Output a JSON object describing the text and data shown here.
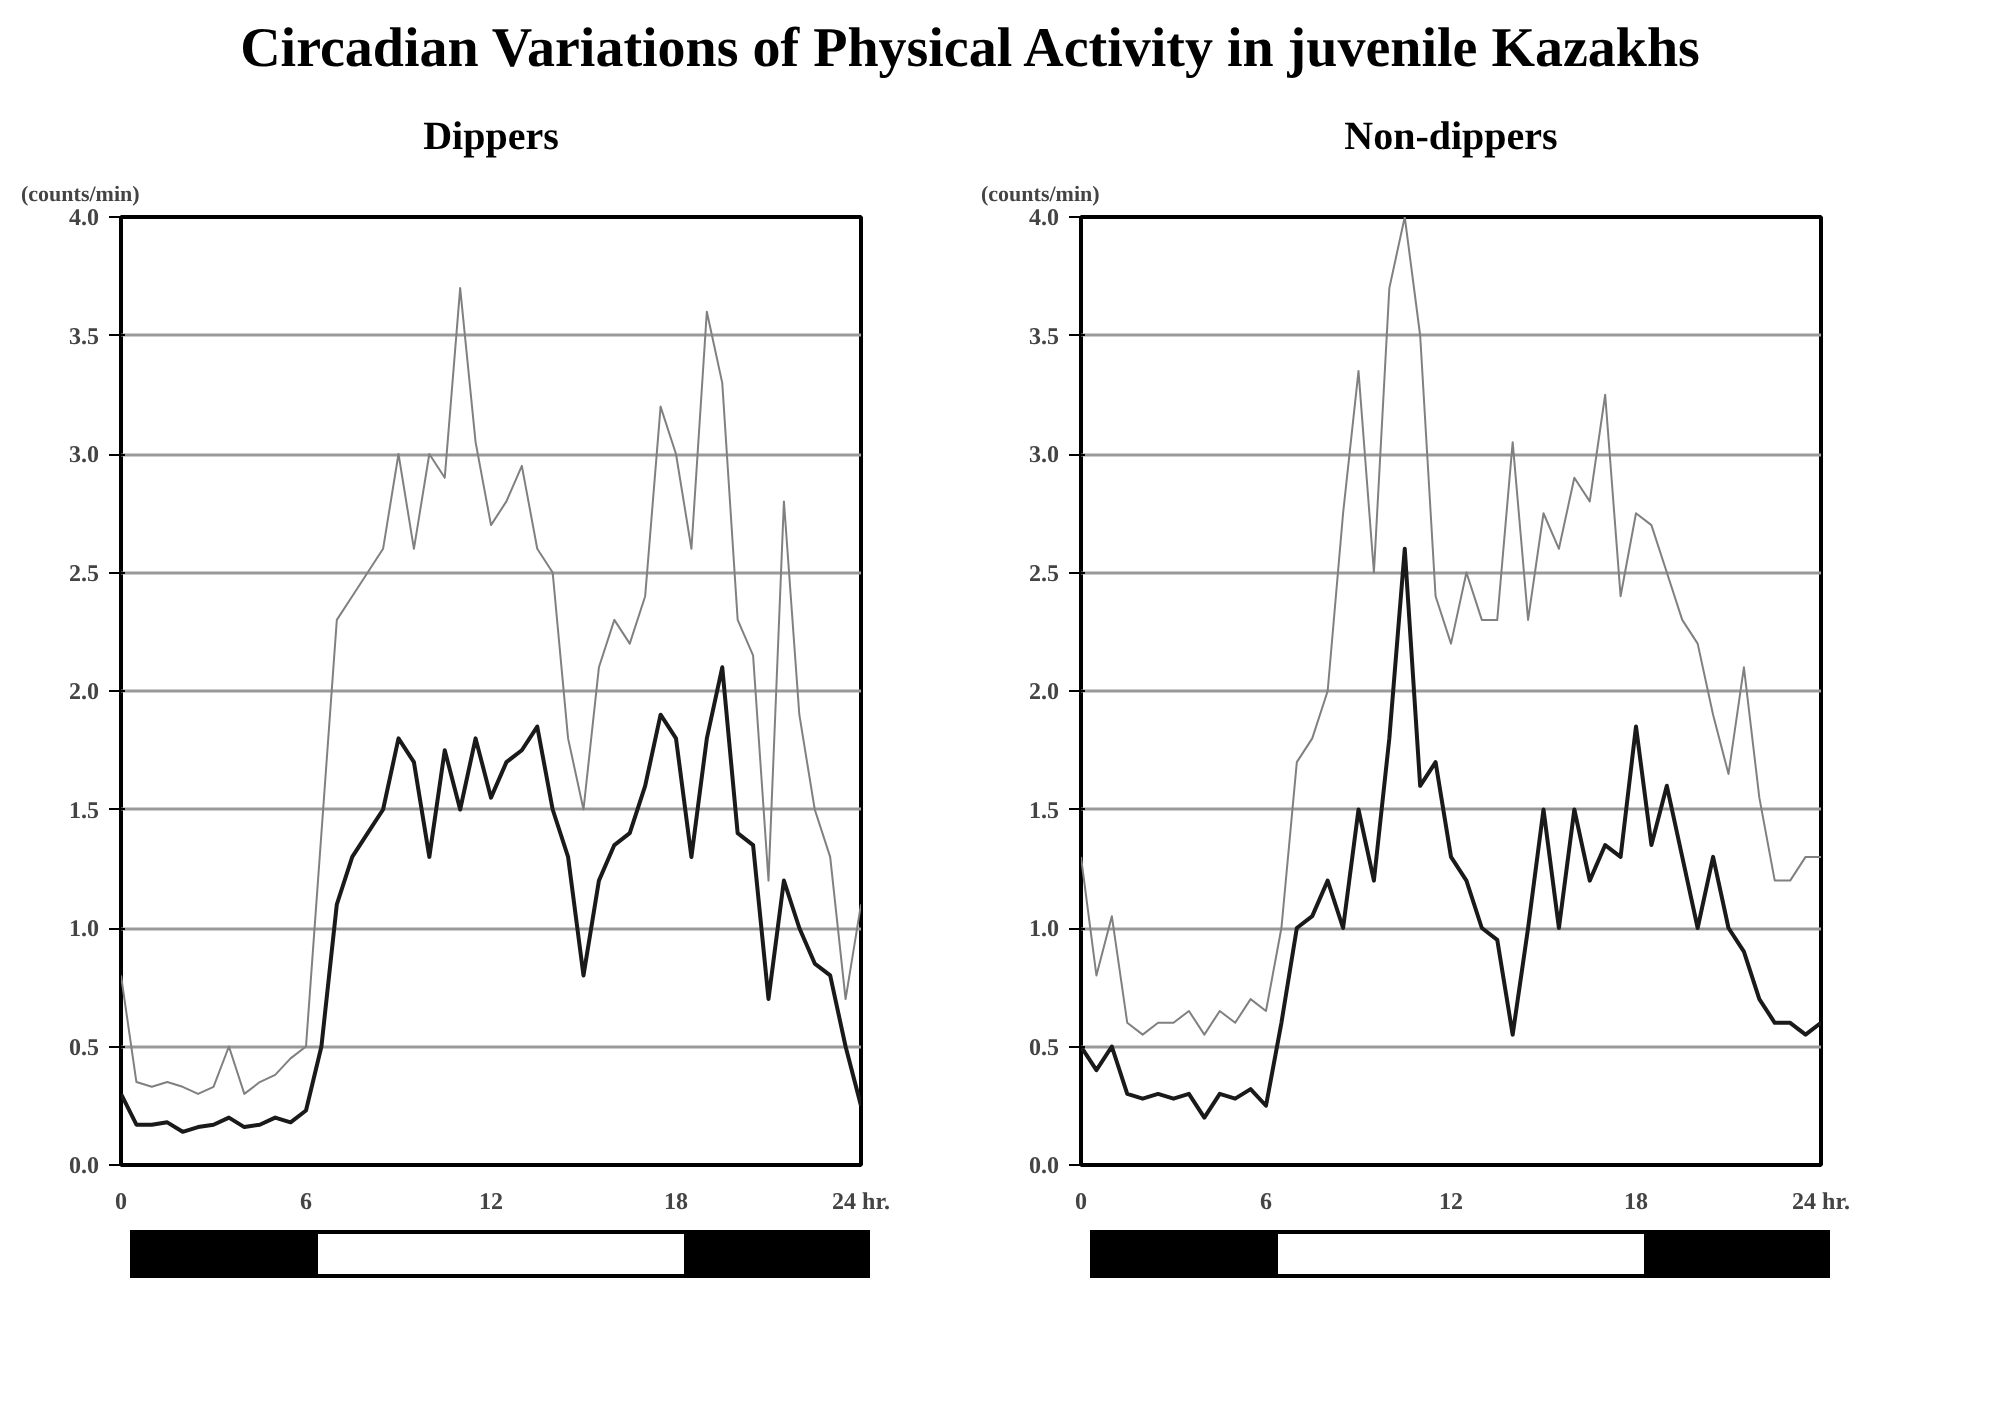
{
  "chart_data": [
    {
      "type": "line",
      "title": "Circadian Variations of Physical Activity in juvenile Kazakhs",
      "subtitle": "Dippers",
      "ylabel": "(counts/min)",
      "x": [
        0,
        0.5,
        1,
        1.5,
        2,
        2.5,
        3,
        3.5,
        4,
        4.5,
        5,
        5.5,
        6,
        6.5,
        7,
        7.5,
        8,
        8.5,
        9,
        9.5,
        10,
        10.5,
        11,
        11.5,
        12,
        12.5,
        13,
        13.5,
        14,
        14.5,
        15,
        15.5,
        16,
        16.5,
        17,
        17.5,
        18,
        18.5,
        19,
        19.5,
        20,
        20.5,
        21,
        21.5,
        22,
        22.5,
        23,
        23.5,
        24
      ],
      "series": [
        {
          "color": "#808080",
          "values": [
            0.8,
            0.35,
            0.33,
            0.35,
            0.33,
            0.3,
            0.33,
            0.5,
            0.3,
            0.35,
            0.38,
            0.45,
            0.5,
            1.4,
            2.3,
            2.4,
            2.5,
            2.6,
            3.0,
            2.6,
            3.0,
            2.9,
            3.7,
            3.05,
            2.7,
            2.8,
            2.95,
            2.6,
            2.5,
            1.8,
            1.5,
            2.1,
            2.3,
            2.2,
            2.4,
            3.2,
            3.0,
            2.6,
            3.6,
            3.3,
            2.3,
            2.15,
            1.2,
            2.8,
            1.9,
            1.5,
            1.3,
            0.7,
            1.1
          ]
        },
        {
          "color": "#1a1a1a",
          "values": [
            0.3,
            0.17,
            0.17,
            0.18,
            0.14,
            0.16,
            0.17,
            0.2,
            0.16,
            0.17,
            0.2,
            0.18,
            0.23,
            0.5,
            1.1,
            1.3,
            1.4,
            1.5,
            1.8,
            1.7,
            1.3,
            1.75,
            1.5,
            1.8,
            1.55,
            1.7,
            1.75,
            1.85,
            1.5,
            1.3,
            0.8,
            1.2,
            1.35,
            1.4,
            1.6,
            1.9,
            1.8,
            1.3,
            1.8,
            2.1,
            1.4,
            1.35,
            0.7,
            1.2,
            1.0,
            0.85,
            0.8,
            0.5,
            0.25
          ]
        }
      ],
      "xlim": [
        0,
        24
      ],
      "xticks": [
        0,
        6,
        12,
        18,
        {
          "value": 24,
          "label": "24 hr."
        }
      ],
      "ylim": [
        0,
        4
      ],
      "yticks": [
        {
          "value": 0,
          "label": "0.0"
        },
        {
          "value": 0.5,
          "label": "0.5"
        },
        {
          "value": 1,
          "label": "1.0"
        },
        {
          "value": 1.5,
          "label": "1.5"
        },
        {
          "value": 2,
          "label": "2.0"
        },
        {
          "value": 2.5,
          "label": "2.5"
        },
        {
          "value": 3,
          "label": "3.0"
        },
        {
          "value": 3.5,
          "label": "3.5"
        },
        {
          "value": 4,
          "label": "4.0"
        }
      ],
      "grid": "y"
    },
    {
      "type": "line",
      "title": "Non-dippers",
      "ylabel": "(counts/min)",
      "x": [
        0,
        0.5,
        1,
        1.5,
        2,
        2.5,
        3,
        3.5,
        4,
        4.5,
        5,
        5.5,
        6,
        6.5,
        7,
        7.5,
        8,
        8.5,
        9,
        9.5,
        10,
        10.5,
        11,
        11.5,
        12,
        12.5,
        13,
        13.5,
        14,
        14.5,
        15,
        15.5,
        16,
        16.5,
        17,
        17.5,
        18,
        18.5,
        19,
        19.5,
        20,
        20.5,
        21,
        21.5,
        22,
        22.5,
        23,
        23.5,
        24
      ],
      "series": [
        {
          "color": "#808080",
          "values": [
            1.3,
            0.8,
            1.05,
            0.6,
            0.55,
            0.6,
            0.6,
            0.65,
            0.55,
            0.65,
            0.6,
            0.7,
            0.65,
            1.0,
            1.7,
            1.8,
            2.0,
            2.75,
            3.35,
            2.5,
            3.7,
            4.0,
            3.5,
            2.4,
            2.2,
            2.5,
            2.3,
            2.3,
            3.05,
            2.3,
            2.75,
            2.6,
            2.9,
            2.8,
            3.25,
            2.4,
            2.75,
            2.7,
            2.5,
            2.3,
            2.2,
            1.9,
            1.65,
            2.1,
            1.55,
            1.2,
            1.2,
            1.3,
            1.3
          ]
        },
        {
          "color": "#1a1a1a",
          "values": [
            0.5,
            0.4,
            0.5,
            0.3,
            0.28,
            0.3,
            0.28,
            0.3,
            0.2,
            0.3,
            0.28,
            0.32,
            0.25,
            0.6,
            1.0,
            1.05,
            1.2,
            1.0,
            1.5,
            1.2,
            1.8,
            2.6,
            1.6,
            1.7,
            1.3,
            1.2,
            1.0,
            0.95,
            0.55,
            1.0,
            1.5,
            1.0,
            1.5,
            1.2,
            1.35,
            1.3,
            1.85,
            1.35,
            1.6,
            1.3,
            1.0,
            1.3,
            1.0,
            0.9,
            0.7,
            0.6,
            0.6,
            0.55,
            0.6
          ]
        }
      ],
      "xlim": [
        0,
        24
      ],
      "xticks": [
        0,
        6,
        12,
        18,
        {
          "value": 24,
          "label": "24 hr."
        }
      ],
      "ylim": [
        0,
        4
      ],
      "yticks": [
        {
          "value": 0,
          "label": "0.0"
        },
        {
          "value": 0.5,
          "label": "0.5"
        },
        {
          "value": 1,
          "label": "1.0"
        },
        {
          "value": 1.5,
          "label": "1.5"
        },
        {
          "value": 2,
          "label": "2.0"
        },
        {
          "value": 2.5,
          "label": "2.5"
        },
        {
          "value": 3,
          "label": "3.0"
        },
        {
          "value": 3.5,
          "label": "3.5"
        },
        {
          "value": 4,
          "label": "4.0"
        }
      ],
      "grid": "y"
    }
  ]
}
